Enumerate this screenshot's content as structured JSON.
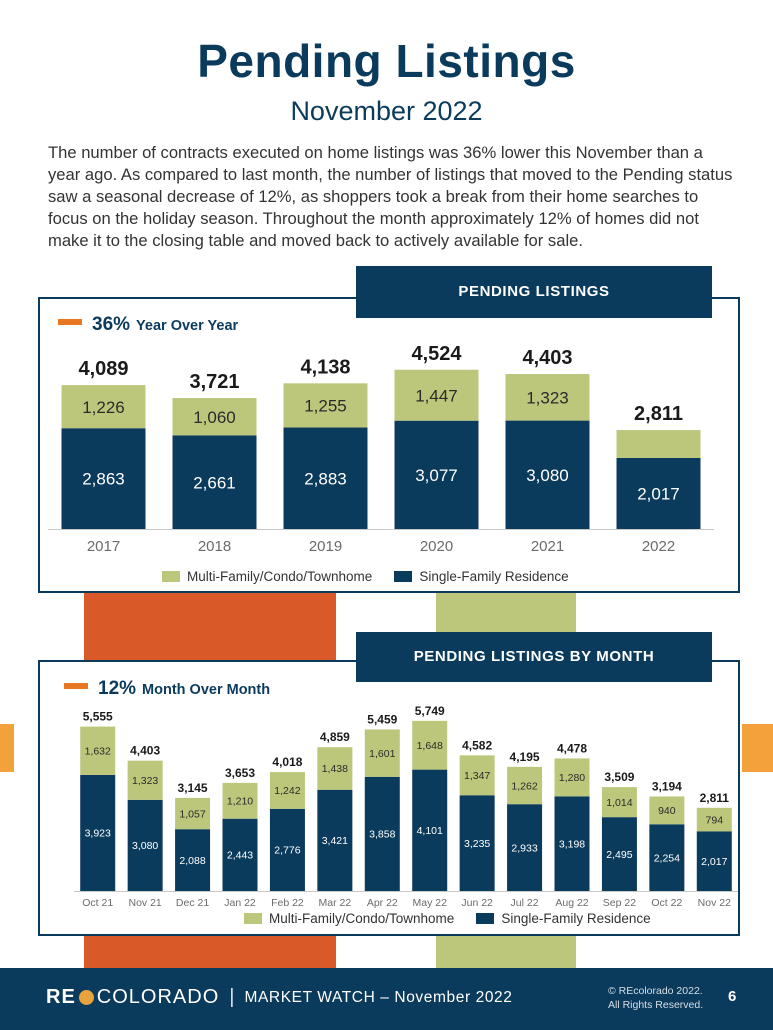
{
  "header": {
    "title": "Pending Listings",
    "subtitle": "November 2022",
    "body": "The number of contracts executed on home listings was 36% lower this November than a year ago.  As compared to last month, the number of listings that moved to the Pending status saw a seasonal decrease of 12%, as shoppers took a break from their home searches to focus on the holiday season. Throughout the month approximately 12% of homes did not make it to the closing table and moved back to actively available for sale."
  },
  "colors": {
    "navy": "#0b3b5c",
    "sfr": "#0b3b5c",
    "multi": "#bcc77b",
    "orange": "#e87722",
    "red_orange": "#d95a28",
    "green_block": "#bcc77b",
    "side_orange": "#f3a13a"
  },
  "yearly": {
    "tag": "PENDING LISTINGS",
    "kpi_value": "36%",
    "kpi_label": "Year Over Year",
    "legend": {
      "multi": "Multi-Family/Condo/Townhome",
      "sfr": "Single-Family Residence"
    }
  },
  "monthly": {
    "tag": "PENDING LISTINGS BY MONTH",
    "kpi_value": "12%",
    "kpi_label": "Month Over Month",
    "legend": {
      "multi": "Multi-Family/Condo/Townhome",
      "sfr": "Single-Family Residence"
    }
  },
  "footer": {
    "brand_re": "RE",
    "brand_co": "COLORADO",
    "separator": "|",
    "market_watch": "MARKET WATCH – November 2022",
    "copyright_1": "© REcolorado 2022.",
    "copyright_2": "All Rights Reserved.",
    "page": "6"
  },
  "chart_data": [
    {
      "type": "bar",
      "stacked": true,
      "categories": [
        "2017",
        "2018",
        "2019",
        "2020",
        "2021",
        "2022"
      ],
      "series": [
        {
          "name": "Single-Family Residence",
          "values": [
            2863,
            2661,
            2883,
            3077,
            3080,
            2017
          ]
        },
        {
          "name": "Multi-Family/Condo/Townhome",
          "values": [
            1226,
            1060,
            1255,
            1447,
            1323,
            794
          ]
        }
      ],
      "totals": [
        4089,
        3721,
        4138,
        4524,
        4403,
        2811
      ],
      "value_labels": {
        "sfr": [
          "2,863",
          "2,661",
          "2,883",
          "3,077",
          "3,080",
          "2,017"
        ],
        "multi": [
          "1,226",
          "1,060",
          "1,255",
          "1,447",
          "1,323",
          ""
        ],
        "totals": [
          "4,089",
          "3,721",
          "4,138",
          "4,524",
          "4,403",
          "2,811"
        ]
      },
      "ylim": [
        0,
        5200
      ],
      "legend": "bottom-center",
      "grid": false
    },
    {
      "type": "bar",
      "stacked": true,
      "categories": [
        "Oct 21",
        "Nov 21",
        "Dec 21",
        "Jan 22",
        "Feb 22",
        "Mar 22",
        "Apr 22",
        "May 22",
        "Jun 22",
        "Jul 22",
        "Aug 22",
        "Sep 22",
        "Oct 22",
        "Nov 22"
      ],
      "series": [
        {
          "name": "Single-Family Residence",
          "values": [
            3923,
            3080,
            2088,
            2443,
            2776,
            3421,
            3858,
            4101,
            3235,
            2933,
            3198,
            2495,
            2254,
            2017
          ]
        },
        {
          "name": "Multi-Family/Condo/Townhome",
          "values": [
            1632,
            1323,
            1057,
            1210,
            1242,
            1438,
            1601,
            1648,
            1347,
            1262,
            1280,
            1014,
            940,
            794
          ]
        }
      ],
      "totals": [
        5555,
        4403,
        3145,
        3653,
        4018,
        4859,
        5459,
        5749,
        4582,
        4195,
        4478,
        3509,
        3194,
        2811
      ],
      "value_labels": {
        "sfr": [
          "3,923",
          "3,080",
          "2,088",
          "2,443",
          "2,776",
          "3,421",
          "3,858",
          "4,101",
          "3,235",
          "2,933",
          "3,198",
          "2,495",
          "2,254",
          "2,017"
        ],
        "multi": [
          "1,632",
          "1,323",
          "1,057",
          "1,210",
          "1,242",
          "1,438",
          "1,601",
          "1,648",
          "1,347",
          "1,262",
          "1,280",
          "1,014",
          "940",
          "794"
        ],
        "totals": [
          "5,555",
          "4,403",
          "3,145",
          "3,653",
          "4,018",
          "4,859",
          "5,459",
          "5,749",
          "4,582",
          "4,195",
          "4,478",
          "3,509",
          "3,194",
          "2,811"
        ]
      },
      "ylim": [
        0,
        6000
      ],
      "legend": "bottom-center",
      "grid": false
    }
  ]
}
